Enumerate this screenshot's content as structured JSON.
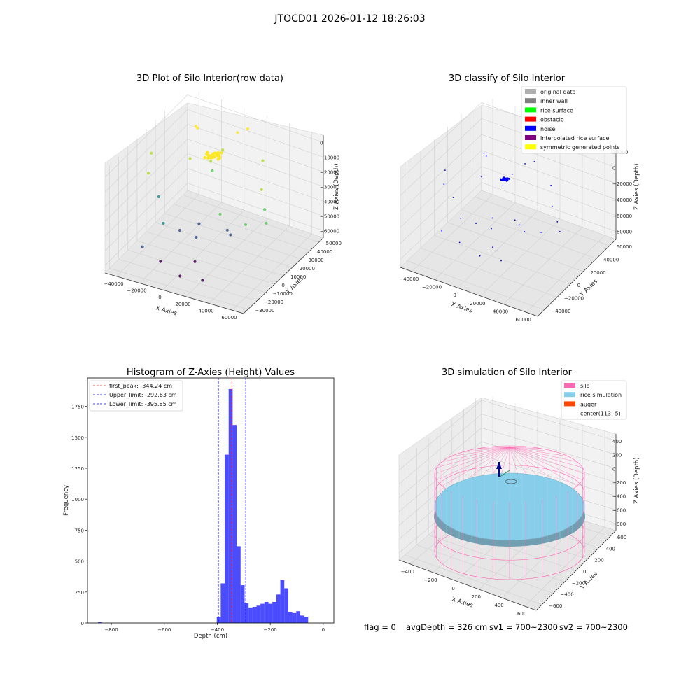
{
  "suptitle": "JTOCD01 2026-01-12 18:26:03",
  "footer": {
    "flag": "flag = 0",
    "avg": "avgDepth = 326 cm",
    "sv1": "sv1 = 700~2300",
    "sv2": "sv2 = 700~2300"
  },
  "chart_data": [
    {
      "type": "scatter",
      "title": "3D Plot of Silo Interior(row data)",
      "xlabel": "X Axies",
      "ylabel": "Y Axies",
      "zlabel": "Z Axies (Depth)",
      "xticks": [
        "−40000",
        "−20000",
        "0",
        "20000",
        "40000",
        "60000"
      ],
      "yticks": [
        "−30000",
        "−20000",
        "−10000",
        "0",
        "10000",
        "20000",
        "30000",
        "40000",
        "50000"
      ],
      "zticks": [
        "0",
        "−10000",
        "−20000",
        "−30000",
        "−40000",
        "−50000",
        "−60000"
      ],
      "colormap": "viridis",
      "points": [
        [
          -45000,
          10000,
          -12000
        ],
        [
          -40000,
          0,
          -18000
        ],
        [
          -30000,
          40000,
          -8000
        ],
        [
          -25000,
          35000,
          -5000
        ],
        [
          -20000,
          20000,
          -15000
        ],
        [
          -10000,
          30000,
          -20000
        ],
        [
          -5000,
          25000,
          -22000
        ],
        [
          0,
          30000,
          -10000
        ],
        [
          5000,
          40000,
          -3000
        ],
        [
          10000,
          45000,
          -2000
        ],
        [
          30000,
          35000,
          -12000
        ],
        [
          40000,
          20000,
          -20000
        ],
        [
          50000,
          10000,
          -25000
        ],
        [
          55000,
          5000,
          -30000
        ],
        [
          45000,
          -5000,
          -28000
        ],
        [
          20000,
          0,
          -30000
        ],
        [
          -20000,
          -10000,
          -40000
        ],
        [
          -10000,
          -5000,
          -45000
        ],
        [
          0,
          0,
          -50000
        ],
        [
          10000,
          -15000,
          -55000
        ],
        [
          -30000,
          -20000,
          -52000
        ],
        [
          -15000,
          -20000,
          -58000
        ],
        [
          5000,
          -25000,
          -60000
        ],
        [
          20000,
          -20000,
          -62000
        ],
        [
          -5000,
          10000,
          -48000
        ],
        [
          15000,
          15000,
          -50000
        ],
        [
          25000,
          5000,
          -45000
        ],
        [
          -35000,
          5000,
          -35000
        ]
      ],
      "cluster": {
        "x": 0,
        "y": 20000,
        "z": -8000,
        "color": "#fde725"
      }
    },
    {
      "type": "scatter",
      "title": "3D classify of Silo Interior",
      "xlabel": "X Axies",
      "ylabel": "Y Axies",
      "zlabel": "Z Axies (Depth)",
      "xticks": [
        "−40000",
        "−20000",
        "0",
        "20000",
        "40000",
        "60000"
      ],
      "yticks": [
        "−40000",
        "−20000",
        "0",
        "20000",
        "40000",
        "60000"
      ],
      "zticks": [
        "20000",
        "0",
        "−20000",
        "−40000",
        "−60000",
        "−80000"
      ],
      "legend": [
        {
          "label": "original data",
          "color": "#b0b0b0"
        },
        {
          "label": "inner wall",
          "color": "#808080"
        },
        {
          "label": "rice surface",
          "color": "#00ff00"
        },
        {
          "label": "obstacle",
          "color": "#ff0000"
        },
        {
          "label": "noise",
          "color": "#0000ff"
        },
        {
          "label": "interpolated rice surface",
          "color": "#800080"
        },
        {
          "label": "symmetric generated points",
          "color": "#ffff00"
        }
      ],
      "noise_color": "#0000ff"
    },
    {
      "type": "bar",
      "title": "Histogram of Z-Axies (Height) Values",
      "xlabel": "Depth (cm)",
      "ylabel": "Frequency",
      "xlim": [
        -890,
        40
      ],
      "ylim": [
        0,
        1980
      ],
      "xticks": [
        -800,
        -600,
        -400,
        -200,
        0
      ],
      "yticks": [
        0,
        250,
        500,
        750,
        1000,
        1250,
        1500,
        1750
      ],
      "bar_color": "#0000ff",
      "bin_width": 15,
      "bins": [
        {
          "x0": -850,
          "count": 8
        },
        {
          "x0": -402,
          "count": 50
        },
        {
          "x0": -387,
          "count": 320
        },
        {
          "x0": -372,
          "count": 1360
        },
        {
          "x0": -357,
          "count": 1890
        },
        {
          "x0": -342,
          "count": 1600
        },
        {
          "x0": -327,
          "count": 620
        },
        {
          "x0": -312,
          "count": 305
        },
        {
          "x0": -297,
          "count": 160
        },
        {
          "x0": -282,
          "count": 125
        },
        {
          "x0": -267,
          "count": 130
        },
        {
          "x0": -252,
          "count": 140
        },
        {
          "x0": -237,
          "count": 155
        },
        {
          "x0": -222,
          "count": 170
        },
        {
          "x0": -207,
          "count": 155
        },
        {
          "x0": -192,
          "count": 170
        },
        {
          "x0": -177,
          "count": 230
        },
        {
          "x0": -162,
          "count": 345
        },
        {
          "x0": -147,
          "count": 280
        },
        {
          "x0": -132,
          "count": 90
        },
        {
          "x0": -117,
          "count": 80
        },
        {
          "x0": -102,
          "count": 95
        },
        {
          "x0": -87,
          "count": 60
        },
        {
          "x0": -72,
          "count": 50
        }
      ],
      "vlines": [
        {
          "label": "first_peak: -344.24 cm",
          "x": -344.24,
          "color": "#ff0000"
        },
        {
          "label": "Upper_limit: -292.63 cm",
          "x": -292.63,
          "color": "#0000ff"
        },
        {
          "label": "Lower_limit: -395.85 cm",
          "x": -395.85,
          "color": "#0000ff"
        }
      ]
    },
    {
      "type": "surface",
      "title": "3D simulation of Silo Interior",
      "xlabel": "X Axies",
      "ylabel": "Y Axies",
      "zlabel": "Z Axies (Depth)",
      "xticks": [
        "−400",
        "−200",
        "0",
        "200",
        "400",
        "600"
      ],
      "yticks": [
        "−600",
        "−400",
        "−200",
        "0",
        "200",
        "400",
        "600"
      ],
      "zticks": [
        "400",
        "200",
        "0",
        "−200",
        "−400",
        "−600",
        "−800"
      ],
      "legend": [
        {
          "label": "silo",
          "color": "#ff69b4"
        },
        {
          "label": "rice simulation",
          "color": "#87ceeb"
        },
        {
          "label": "auger",
          "color": "#ff4500"
        },
        {
          "label": "center(113,-5)",
          "color": ""
        }
      ],
      "silo_color": "#ff69b4",
      "rice_color": "#87ceeb"
    }
  ]
}
